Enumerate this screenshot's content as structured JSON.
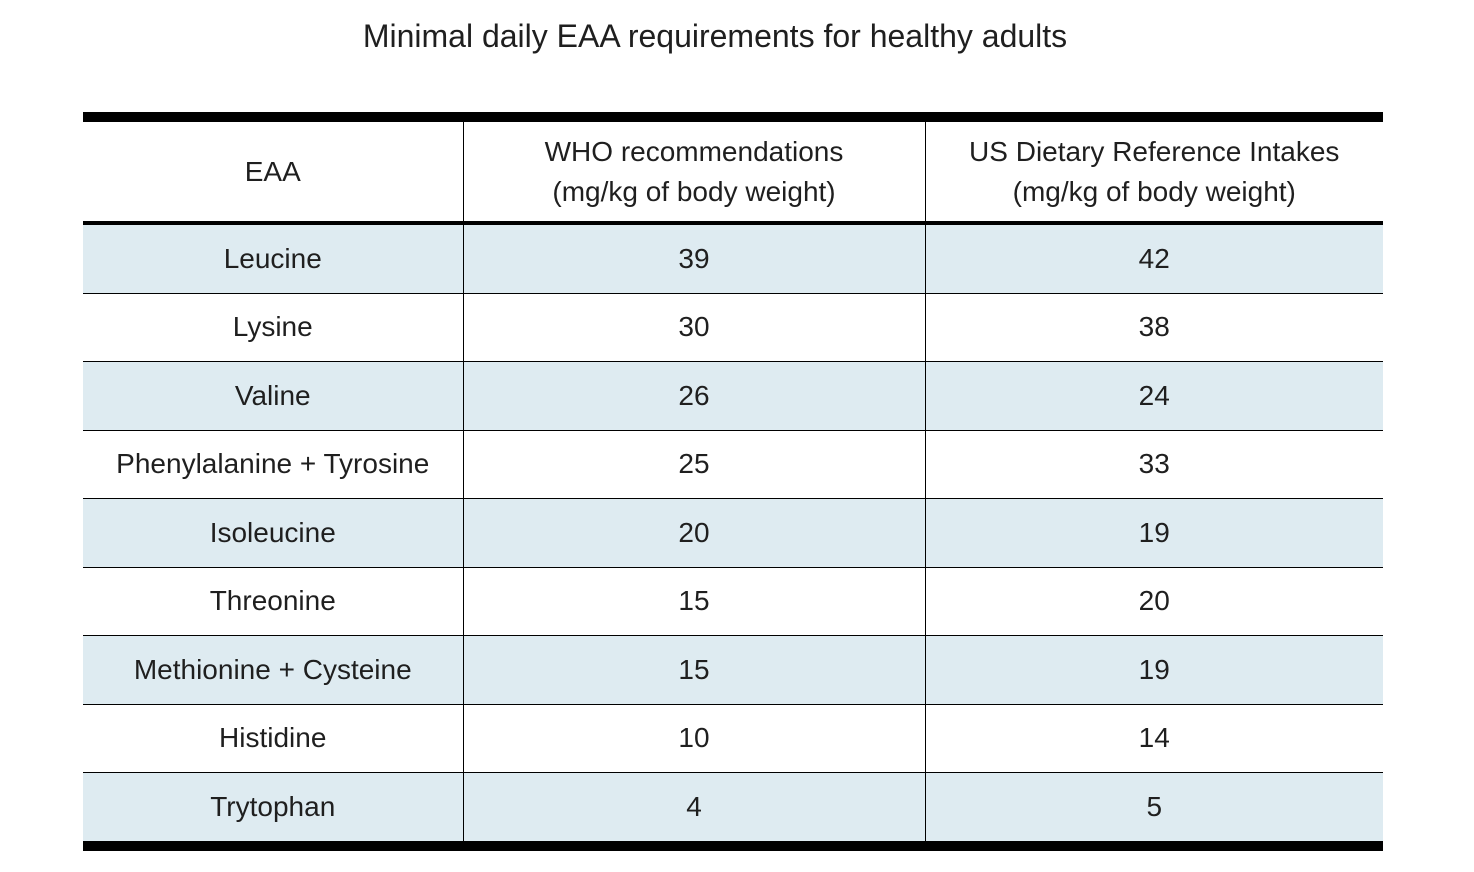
{
  "title": "Minimal daily EAA requirements for healthy adults",
  "table": {
    "headers": [
      {
        "line1": "EAA",
        "line2": ""
      },
      {
        "line1": "WHO recommendations",
        "line2": "(mg/kg of body weight)"
      },
      {
        "line1": "US Dietary Reference Intakes",
        "line2": "(mg/kg of body weight)"
      }
    ],
    "rows": [
      {
        "eaa": "Leucine",
        "who": "39",
        "us": "42"
      },
      {
        "eaa": "Lysine",
        "who": "30",
        "us": "38"
      },
      {
        "eaa": "Valine",
        "who": "26",
        "us": "24"
      },
      {
        "eaa": "Phenylalanine + Tyrosine",
        "who": "25",
        "us": "33"
      },
      {
        "eaa": "Isoleucine",
        "who": "20",
        "us": "19"
      },
      {
        "eaa": "Threonine",
        "who": "15",
        "us": "20"
      },
      {
        "eaa": "Methionine + Cysteine",
        "who": "15",
        "us": "19"
      },
      {
        "eaa": "Histidine",
        "who": "10",
        "us": "14"
      },
      {
        "eaa": "Trytophan",
        "who": "4",
        "us": "5"
      }
    ]
  },
  "colors": {
    "shaded_row": "#deebf1",
    "rule": "#000000"
  }
}
